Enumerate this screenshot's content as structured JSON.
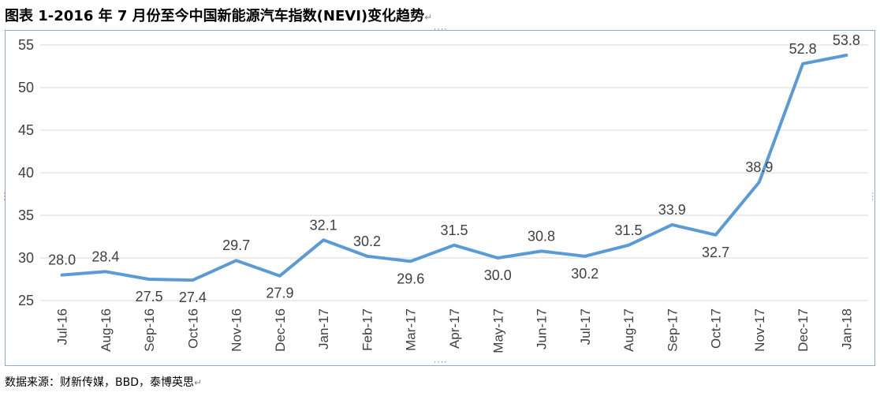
{
  "title": "图表 1-2016 年 7 月份至今中国新能源汽车指数(NEVI)变化趋势",
  "source": "数据来源：财新传媒，BBD，泰博英思",
  "paragraph_mark": "↵",
  "chart_data": {
    "type": "line",
    "title": "",
    "xlabel": "",
    "ylabel": "",
    "categories": [
      "Jul-16",
      "Aug-16",
      "Sep-16",
      "Oct-16",
      "Nov-16",
      "Dec-16",
      "Jan-17",
      "Feb-17",
      "Mar-17",
      "Apr-17",
      "May-17",
      "Jun-17",
      "Jul-17",
      "Aug-17",
      "Sep-17",
      "Oct-17",
      "Nov-17",
      "Dec-17",
      "Jan-18"
    ],
    "series": [
      {
        "name": "",
        "values": [
          28.0,
          28.4,
          27.5,
          27.4,
          29.7,
          27.9,
          32.1,
          30.2,
          29.6,
          31.5,
          30.0,
          30.8,
          30.2,
          31.5,
          33.9,
          32.7,
          38.9,
          52.8,
          53.8
        ]
      }
    ],
    "data_labels": [
      "28.0",
      "28.4",
      "27.5",
      "27.4",
      "29.7",
      "27.9",
      "32.1",
      "30.2",
      "29.6",
      "31.5",
      "30.0",
      "30.8",
      "30.2",
      "31.5",
      "33.9",
      "32.7",
      "38.9",
      "52.8",
      "53.8"
    ],
    "label_positions": [
      "above",
      "above",
      "below",
      "below",
      "above",
      "below",
      "above",
      "above",
      "below",
      "above",
      "below",
      "above",
      "below",
      "above",
      "above",
      "below",
      "above",
      "above",
      "above"
    ],
    "ylim": [
      25,
      55
    ],
    "yticks": [
      "25",
      "30",
      "35",
      "40",
      "45",
      "50",
      "55"
    ],
    "grid": true,
    "legend": "none",
    "line_color": "#5b9bd5",
    "grid_color": "#d9d9d9"
  }
}
